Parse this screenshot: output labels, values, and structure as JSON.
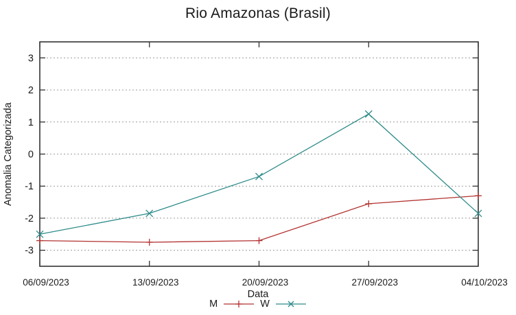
{
  "chart_data": {
    "type": "line",
    "title": "Rio Amazonas (Brasil)",
    "xlabel": "Data",
    "ylabel": "Anomalia Categorizada",
    "categories": [
      "06/09/2023",
      "13/09/2023",
      "20/09/2023",
      "27/09/2023",
      "04/10/2023"
    ],
    "y_ticks": [
      -3,
      -2,
      -1,
      0,
      1,
      2,
      3
    ],
    "ylim": [
      -3.5,
      3.5
    ],
    "grid": "horizontal-dotted",
    "legend_position": "below",
    "series": [
      {
        "name": "M",
        "color": "#b23230",
        "marker": "plus",
        "values": [
          -2.7,
          -2.75,
          -2.7,
          -1.55,
          -1.3
        ]
      },
      {
        "name": "W",
        "color": "#2d8b89",
        "marker": "cross",
        "values": [
          -2.5,
          -1.85,
          -0.7,
          1.25,
          -1.85
        ]
      }
    ]
  }
}
